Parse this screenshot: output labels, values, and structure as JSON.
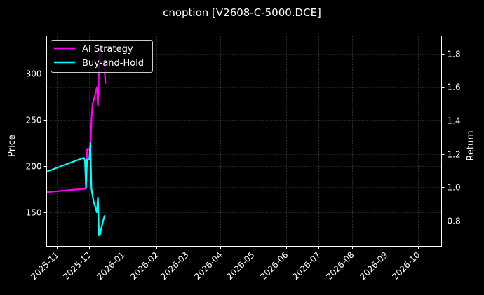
{
  "chart_data": {
    "type": "line",
    "title": "cnoption [V2608-C-5000.DCE]",
    "xlabel": "",
    "ylabel": "Price",
    "ylabel_right": "Return",
    "ylim": [
      115,
      342
    ],
    "ylim_right": [
      0.65,
      1.9
    ],
    "grid": true,
    "legend_position": "upper left",
    "x_ticks": [
      "2025-11",
      "2025-12",
      "2026-01",
      "2026-02",
      "2026-03",
      "2026-04",
      "2026-05",
      "2026-06",
      "2026-07",
      "2026-08",
      "2026-09",
      "2026-10"
    ],
    "y_ticks": [
      150,
      200,
      250,
      300
    ],
    "y_ticks_right": [
      0.8,
      1.0,
      1.2,
      1.4,
      1.6,
      1.8
    ],
    "series": [
      {
        "name": "AI Strategy",
        "axis": "right",
        "color": "#ff00ff",
        "x": [
          "2025-10-21",
          "2025-11-27",
          "2025-11-28",
          "2025-11-29",
          "2025-12-01",
          "2025-12-02",
          "2025-12-03",
          "2025-12-04",
          "2025-12-05",
          "2025-12-08",
          "2025-12-09",
          "2025-12-10",
          "2025-12-11",
          "2025-12-12",
          "2025-12-15",
          "2025-12-16"
        ],
        "values": [
          0.97,
          0.99,
          1.0,
          1.23,
          1.23,
          1.2,
          1.4,
          1.5,
          1.52,
          1.6,
          1.49,
          1.72,
          1.84,
          1.75,
          1.72,
          1.62
        ]
      },
      {
        "name": "Buy-and-Hold",
        "axis": "left",
        "color": "#00ffff",
        "x": [
          "2025-10-21",
          "2025-11-26",
          "2025-11-27",
          "2025-11-28",
          "2025-11-29",
          "2025-12-01",
          "2025-12-02",
          "2025-12-03",
          "2025-12-04",
          "2025-12-05",
          "2025-12-08",
          "2025-12-09",
          "2025-12-10",
          "2025-12-11",
          "2025-12-12",
          "2025-12-15",
          "2025-12-16"
        ],
        "values": [
          194,
          209,
          206,
          176,
          207,
          207,
          225,
          176,
          168,
          162,
          150,
          166,
          125,
          126,
          132,
          146,
          146
        ]
      }
    ]
  },
  "legend": {
    "items": [
      "AI Strategy",
      "Buy-and-Hold"
    ]
  }
}
